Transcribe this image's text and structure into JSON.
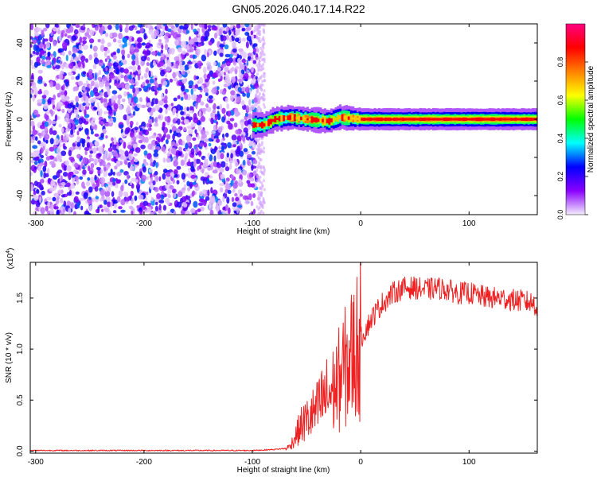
{
  "title": "GN05.2026.040.17.14.R22",
  "chart_data": [
    {
      "type": "heatmap",
      "xlabel": "Height of straight line (km)",
      "ylabel": "Frequency (Hz)",
      "xlim": [
        -305,
        163
      ],
      "ylim": [
        -50,
        50
      ],
      "xticks": [
        -300,
        -200,
        -100,
        0,
        100
      ],
      "yticks": [
        -40,
        -20,
        0,
        20,
        40
      ],
      "colorbar": {
        "label": "Normalized spectral amplitude",
        "range": [
          0,
          1
        ],
        "ticks": [
          "0.0",
          "0.2",
          "0.4",
          "0.6",
          "0.8"
        ],
        "colors": [
          "#f4eefc",
          "#8a00ff",
          "#0000ff",
          "#00ffff",
          "#00ff00",
          "#ffff00",
          "#ff8000",
          "#ff0000",
          "#ff0080"
        ]
      },
      "regions": [
        {
          "name": "noise",
          "x": [
            -305,
            -90
          ],
          "y": [
            -50,
            50
          ],
          "amplitude": [
            0.0,
            0.3
          ]
        },
        {
          "name": "signal-trace",
          "x": [
            -100,
            163
          ],
          "center_frequency": [
            [
              -100,
              -3
            ],
            [
              -90,
              -3
            ],
            [
              -80,
              0
            ],
            [
              -65,
              1
            ],
            [
              -50,
              0
            ],
            [
              -30,
              -1
            ],
            [
              -20,
              1
            ],
            [
              0,
              0
            ],
            [
              50,
              0
            ],
            [
              100,
              0
            ],
            [
              163,
              0
            ]
          ],
          "amplitude": [
            0.4,
            1.0
          ]
        }
      ]
    },
    {
      "type": "line",
      "xlabel": "Height of straight line (km)",
      "ylabel": "SNR (10 * v/v)",
      "yscale_label": "(x10",
      "yscale_exp": "4",
      "xlim": [
        -305,
        163
      ],
      "ylim": [
        -0.02,
        1.85
      ],
      "xticks": [
        -300,
        -200,
        -100,
        0,
        100
      ],
      "yticks": [
        "0.0",
        "0.5",
        "1.0",
        "1.5"
      ],
      "color": "#ee2222",
      "series": [
        {
          "x": [
            -305,
            -280,
            -250,
            -200,
            -150,
            -100,
            -80,
            -70,
            -65,
            -60,
            -55,
            -50,
            -45,
            -40,
            -35,
            -30,
            -25,
            -20,
            -15,
            -10,
            -5,
            0,
            5,
            10,
            15,
            20,
            25,
            30,
            40,
            50,
            60,
            70,
            80,
            90,
            100,
            110,
            120,
            130,
            140,
            150,
            160,
            163
          ],
          "y": [
            0.0,
            0.0,
            0.0,
            0.0,
            0.0,
            0.0,
            0.01,
            0.02,
            0.05,
            0.15,
            0.25,
            0.3,
            0.35,
            0.4,
            0.5,
            0.55,
            0.6,
            0.7,
            0.8,
            0.9,
            1.0,
            1.1,
            1.2,
            1.3,
            1.38,
            1.45,
            1.5,
            1.55,
            1.6,
            1.6,
            1.58,
            1.6,
            1.58,
            1.55,
            1.55,
            1.52,
            1.5,
            1.5,
            1.48,
            1.47,
            1.45,
            1.4
          ]
        }
      ]
    }
  ]
}
